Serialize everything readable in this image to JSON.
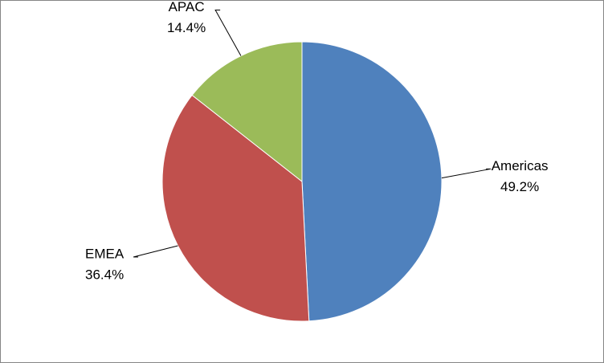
{
  "chart_data": {
    "type": "pie",
    "categories": [
      "Americas",
      "EMEA",
      "APAC"
    ],
    "values": [
      49.2,
      36.4,
      14.4
    ],
    "value_labels": [
      "49.2%",
      "36.4%",
      "14.4%"
    ],
    "colors": [
      "#4f81bd",
      "#c0504d",
      "#9bbb59"
    ]
  }
}
